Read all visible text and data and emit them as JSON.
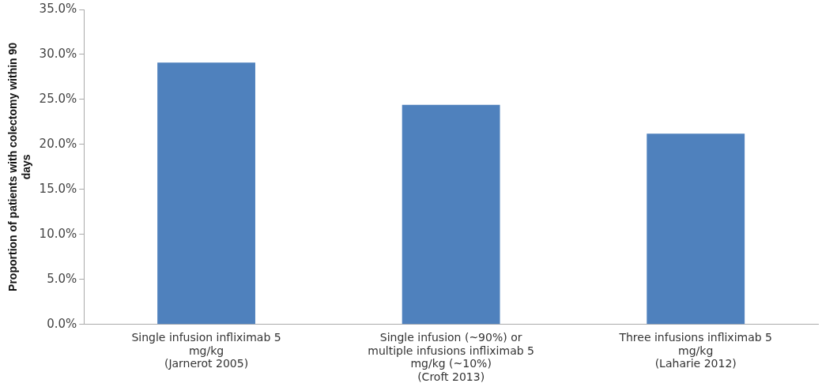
{
  "chart_data": {
    "type": "bar",
    "ylabel": "Proportion of patients with colectomy within 90\ndays",
    "categories": [
      "Single infusion infliximab 5\nmg/kg\n(Jarnerot 2005)",
      "Single infusion (~90%) or\nmultiple infusions infliximab 5\nmg/kg (~10%)\n(Croft 2013)",
      "Three infusions infliximab 5\nmg/kg\n(Laharie 2012)"
    ],
    "values": [
      29.1,
      24.4,
      21.2
    ],
    "color": "#4f81bd",
    "ylim": [
      0,
      35
    ],
    "yticks": [
      {
        "value": 0,
        "label": "0.0%"
      },
      {
        "value": 5,
        "label": "5.0%"
      },
      {
        "value": 10,
        "label": "10.0%"
      },
      {
        "value": 15,
        "label": "15.0%"
      },
      {
        "value": 20,
        "label": "20.0%"
      },
      {
        "value": 25,
        "label": "25.0%"
      },
      {
        "value": 30,
        "label": "30.0%"
      },
      {
        "value": 35,
        "label": "35.0%"
      }
    ],
    "grid": false,
    "legend": false
  }
}
